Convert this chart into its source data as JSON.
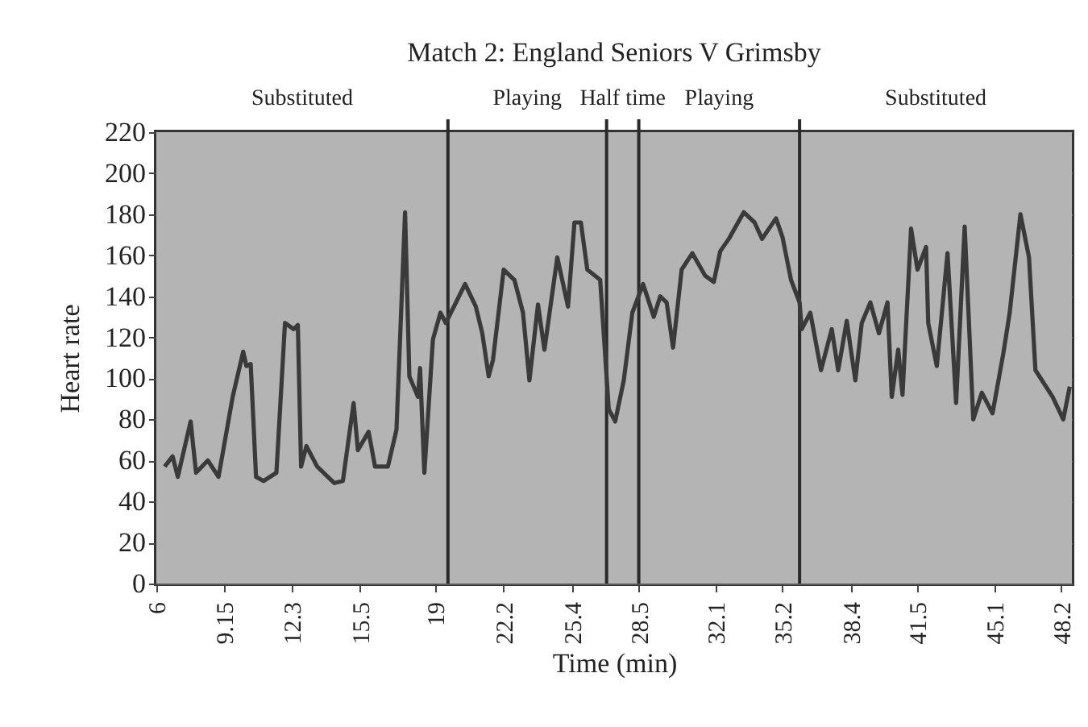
{
  "chart_data": {
    "type": "line",
    "title": "Match 2: England Seniors V Grimsby",
    "xlabel": "Time (min)",
    "ylabel": "Heart rate",
    "x": [
      6.39,
      6.76,
      7.0,
      7.6,
      7.85,
      8.4,
      8.9,
      9.56,
      10.05,
      10.2,
      10.4,
      10.65,
      11.0,
      11.6,
      12.0,
      12.4,
      12.6,
      12.75,
      13.0,
      13.5,
      14.3,
      14.7,
      15.2,
      15.4,
      15.9,
      16.2,
      16.8,
      17.2,
      17.6,
      17.8,
      18.2,
      18.3,
      18.5,
      18.9,
      19.25,
      19.5,
      20.4,
      20.9,
      21.2,
      21.5,
      21.7,
      22.2,
      22.7,
      23.1,
      23.4,
      23.8,
      24.1,
      24.7,
      25.2,
      25.5,
      25.8,
      26.1,
      26.7,
      27.1,
      27.4,
      27.8,
      28.2,
      28.7,
      29.2,
      29.5,
      29.8,
      30.1,
      30.5,
      31.0,
      31.6,
      32.0,
      32.3,
      32.7,
      33.4,
      33.9,
      34.25,
      34.9,
      35.2,
      35.6,
      36.0,
      36.1,
      36.5,
      37.0,
      37.5,
      37.8,
      38.2,
      38.6,
      38.9,
      39.3,
      39.7,
      40.1,
      40.3,
      40.6,
      40.8,
      41.2,
      41.5,
      41.9,
      42.0,
      42.4,
      42.9,
      43.3,
      43.7,
      44.1,
      44.5,
      45.0,
      45.5,
      45.8,
      46.3,
      46.7,
      47.0,
      47.8,
      48.3,
      48.6
    ],
    "series": [
      {
        "color": "#3a3a3a",
        "values": [
          57,
          62,
          52,
          79,
          54,
          60,
          52,
          91,
          113,
          106,
          107,
          52,
          50,
          54,
          127,
          124,
          126,
          57,
          67,
          57,
          49,
          50,
          88,
          65,
          74,
          57,
          57,
          75,
          181,
          101,
          91,
          105,
          54,
          119,
          132,
          127,
          146,
          135,
          122,
          101,
          109,
          153,
          148,
          132,
          99,
          136,
          114,
          159,
          135,
          176,
          176,
          153,
          148,
          85,
          79,
          99,
          132,
          146,
          130,
          140,
          137,
          115,
          153,
          161,
          150,
          147,
          162,
          168,
          181,
          176,
          168,
          178,
          169,
          148,
          137,
          124,
          132,
          104,
          124,
          104,
          128,
          99,
          127,
          137,
          122,
          137,
          91,
          114,
          92,
          173,
          153,
          164,
          127,
          106,
          161,
          88,
          174,
          80,
          93,
          83,
          112,
          132,
          180,
          159,
          104,
          91,
          80,
          96
        ]
      }
    ],
    "xlim": [
      6,
      48.7
    ],
    "xticks": [
      6,
      9.15,
      12.3,
      15.5,
      19,
      22.2,
      25.4,
      28.5,
      32.1,
      35.2,
      38.4,
      41.5,
      45.1,
      48.2
    ],
    "ylim": [
      0,
      220
    ],
    "yticks": [
      0,
      20,
      40,
      60,
      80,
      100,
      120,
      140,
      160,
      180,
      200,
      220
    ],
    "grid": "y",
    "marker": "none",
    "line_style": "solid",
    "ref_lines": [
      {
        "axis": "x",
        "value": 19.6,
        "color": "#2a2a2a"
      },
      {
        "axis": "x",
        "value": 27.0,
        "color": "#2a2a2a"
      },
      {
        "axis": "x",
        "value": 28.5,
        "color": "#2a2a2a"
      },
      {
        "axis": "x",
        "value": 36.0,
        "color": "#2a2a2a"
      }
    ],
    "bands": [
      {
        "axis": "x",
        "from": 6,
        "to": 19.6,
        "label": "Substituted",
        "color": "#b4b4b4"
      },
      {
        "axis": "x",
        "from": 19.6,
        "to": 27.0,
        "label": "Playing",
        "color": "#b4b4b4"
      },
      {
        "axis": "x",
        "from": 27.0,
        "to": 28.5,
        "label": "Half time",
        "color": "#b4b4b4"
      },
      {
        "axis": "x",
        "from": 28.5,
        "to": 36.0,
        "label": "Playing",
        "color": "#b4b4b4"
      },
      {
        "axis": "x",
        "from": 36.0,
        "to": 48.7,
        "label": "Substituted",
        "color": "#b4b4b4"
      }
    ]
  }
}
